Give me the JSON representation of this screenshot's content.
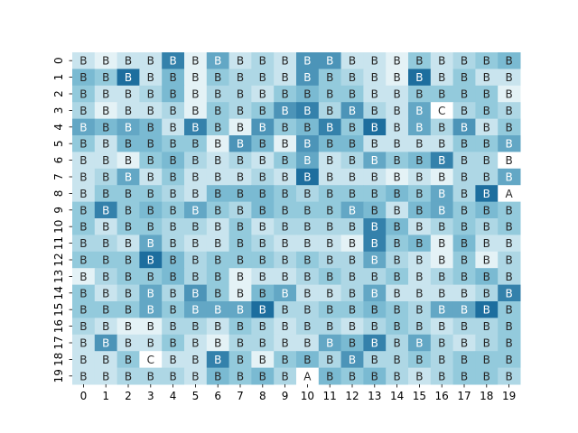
{
  "chart_data": {
    "type": "heatmap",
    "title": "",
    "xlabel": "",
    "ylabel": "",
    "x_ticks": [
      "0",
      "1",
      "2",
      "3",
      "4",
      "5",
      "6",
      "7",
      "8",
      "9",
      "10",
      "11",
      "12",
      "13",
      "14",
      "15",
      "16",
      "17",
      "18",
      "19"
    ],
    "y_ticks": [
      "0",
      "1",
      "2",
      "3",
      "4",
      "5",
      "6",
      "7",
      "8",
      "9",
      "10",
      "11",
      "12",
      "13",
      "14",
      "15",
      "16",
      "17",
      "18",
      "19"
    ],
    "colormap": {
      "low": "#ffffff",
      "mid": "#86c3d8",
      "high": "#1d6e9e"
    },
    "grid": false,
    "colorbar": false,
    "labels": [
      [
        "B",
        "B",
        "B",
        "B",
        "B",
        "B",
        "B",
        "B",
        "B",
        "B",
        "B",
        "B",
        "B",
        "B",
        "B",
        "B",
        "B",
        "B",
        "B",
        "B"
      ],
      [
        "B",
        "B",
        "B",
        "B",
        "B",
        "B",
        "B",
        "B",
        "B",
        "B",
        "B",
        "B",
        "B",
        "B",
        "B",
        "B",
        "B",
        "B",
        "B",
        "B"
      ],
      [
        "B",
        "B",
        "B",
        "B",
        "B",
        "B",
        "B",
        "B",
        "B",
        "B",
        "B",
        "B",
        "B",
        "B",
        "B",
        "B",
        "B",
        "B",
        "B",
        "B"
      ],
      [
        "B",
        "B",
        "B",
        "B",
        "B",
        "B",
        "B",
        "B",
        "B",
        "B",
        "B",
        "B",
        "B",
        "B",
        "B",
        "B",
        "C",
        "B",
        "B",
        "B"
      ],
      [
        "B",
        "B",
        "B",
        "B",
        "B",
        "B",
        "B",
        "B",
        "B",
        "B",
        "B",
        "B",
        "B",
        "B",
        "B",
        "B",
        "B",
        "B",
        "B",
        "B"
      ],
      [
        "B",
        "B",
        "B",
        "B",
        "B",
        "B",
        "B",
        "B",
        "B",
        "B",
        "B",
        "B",
        "B",
        "B",
        "B",
        "B",
        "B",
        "B",
        "B",
        "B"
      ],
      [
        "B",
        "B",
        "B",
        "B",
        "B",
        "B",
        "B",
        "B",
        "B",
        "B",
        "B",
        "B",
        "B",
        "B",
        "B",
        "B",
        "B",
        "B",
        "B",
        "B"
      ],
      [
        "B",
        "B",
        "B",
        "B",
        "B",
        "B",
        "B",
        "B",
        "B",
        "B",
        "B",
        "B",
        "B",
        "B",
        "B",
        "B",
        "B",
        "B",
        "B",
        "B"
      ],
      [
        "B",
        "B",
        "B",
        "B",
        "B",
        "B",
        "B",
        "B",
        "B",
        "B",
        "B",
        "B",
        "B",
        "B",
        "B",
        "B",
        "B",
        "B",
        "B",
        "A"
      ],
      [
        "B",
        "B",
        "B",
        "B",
        "B",
        "B",
        "B",
        "B",
        "B",
        "B",
        "B",
        "B",
        "B",
        "B",
        "B",
        "B",
        "B",
        "B",
        "B",
        "B"
      ],
      [
        "B",
        "B",
        "B",
        "B",
        "B",
        "B",
        "B",
        "B",
        "B",
        "B",
        "B",
        "B",
        "B",
        "B",
        "B",
        "B",
        "B",
        "B",
        "B",
        "B"
      ],
      [
        "B",
        "B",
        "B",
        "B",
        "B",
        "B",
        "B",
        "B",
        "B",
        "B",
        "B",
        "B",
        "B",
        "B",
        "B",
        "B",
        "B",
        "B",
        "B",
        "B"
      ],
      [
        "B",
        "B",
        "B",
        "B",
        "B",
        "B",
        "B",
        "B",
        "B",
        "B",
        "B",
        "B",
        "B",
        "B",
        "B",
        "B",
        "B",
        "B",
        "B",
        "B"
      ],
      [
        "B",
        "B",
        "B",
        "B",
        "B",
        "B",
        "B",
        "B",
        "B",
        "B",
        "B",
        "B",
        "B",
        "B",
        "B",
        "B",
        "B",
        "B",
        "B",
        "B"
      ],
      [
        "B",
        "B",
        "B",
        "B",
        "B",
        "B",
        "B",
        "B",
        "B",
        "B",
        "B",
        "B",
        "B",
        "B",
        "B",
        "B",
        "B",
        "B",
        "B",
        "B"
      ],
      [
        "B",
        "B",
        "B",
        "B",
        "B",
        "B",
        "B",
        "B",
        "B",
        "B",
        "B",
        "B",
        "B",
        "B",
        "B",
        "B",
        "B",
        "B",
        "B",
        "B"
      ],
      [
        "B",
        "B",
        "B",
        "B",
        "B",
        "B",
        "B",
        "B",
        "B",
        "B",
        "B",
        "B",
        "B",
        "B",
        "B",
        "B",
        "B",
        "B",
        "B",
        "B"
      ],
      [
        "B",
        "B",
        "B",
        "B",
        "B",
        "B",
        "B",
        "B",
        "B",
        "B",
        "B",
        "B",
        "B",
        "B",
        "B",
        "B",
        "B",
        "B",
        "B",
        "B"
      ],
      [
        "B",
        "B",
        "B",
        "C",
        "B",
        "B",
        "B",
        "B",
        "B",
        "B",
        "B",
        "B",
        "B",
        "B",
        "B",
        "B",
        "B",
        "B",
        "B",
        "B"
      ],
      [
        "B",
        "B",
        "B",
        "B",
        "B",
        "B",
        "B",
        "B",
        "B",
        "B",
        "A",
        "B",
        "B",
        "B",
        "B",
        "B",
        "B",
        "B",
        "B",
        "B"
      ]
    ],
    "values": [
      [
        2,
        1,
        2,
        2,
        8,
        1,
        6,
        2,
        3,
        2,
        7,
        7,
        2,
        2,
        1,
        4,
        2,
        3,
        4,
        5
      ],
      [
        5,
        4,
        9,
        2,
        5,
        1,
        4,
        3,
        3,
        2,
        7,
        4,
        3,
        2,
        1,
        9,
        2,
        4,
        2,
        2
      ],
      [
        4,
        2,
        2,
        3,
        5,
        1,
        3,
        3,
        2,
        4,
        5,
        4,
        4,
        2,
        2,
        4,
        4,
        4,
        4,
        1
      ],
      [
        3,
        1,
        2,
        2,
        3,
        1,
        4,
        3,
        4,
        7,
        8,
        3,
        7,
        3,
        2,
        6,
        0,
        3,
        4,
        3
      ],
      [
        6,
        5,
        6,
        5,
        2,
        8,
        4,
        1,
        7,
        4,
        5,
        8,
        4,
        9,
        2,
        6,
        3,
        7,
        2,
        4
      ],
      [
        4,
        2,
        5,
        5,
        4,
        4,
        1,
        7,
        5,
        1,
        7,
        5,
        5,
        2,
        2,
        2,
        2,
        4,
        4,
        6
      ],
      [
        2,
        2,
        1,
        4,
        5,
        3,
        2,
        3,
        2,
        4,
        6,
        2,
        3,
        6,
        4,
        5,
        8,
        3,
        3,
        0
      ],
      [
        2,
        3,
        6,
        2,
        4,
        2,
        2,
        2,
        3,
        2,
        9,
        2,
        2,
        2,
        1,
        2,
        1,
        3,
        3,
        6
      ],
      [
        2,
        4,
        4,
        4,
        3,
        2,
        5,
        5,
        5,
        4,
        3,
        4,
        4,
        4,
        5,
        4,
        6,
        3,
        9,
        0
      ],
      [
        4,
        8,
        4,
        5,
        4,
        6,
        4,
        3,
        5,
        4,
        4,
        4,
        6,
        5,
        2,
        5,
        6,
        4,
        5,
        4
      ],
      [
        4,
        2,
        4,
        4,
        3,
        3,
        2,
        4,
        2,
        3,
        3,
        3,
        3,
        8,
        5,
        2,
        3,
        4,
        3,
        4
      ],
      [
        3,
        3,
        2,
        6,
        3,
        2,
        2,
        4,
        3,
        2,
        2,
        2,
        1,
        8,
        4,
        5,
        1,
        5,
        2,
        2
      ],
      [
        4,
        4,
        4,
        9,
        5,
        3,
        4,
        4,
        4,
        3,
        4,
        3,
        3,
        6,
        3,
        2,
        1,
        4,
        1,
        3
      ],
      [
        1,
        3,
        4,
        4,
        5,
        3,
        4,
        1,
        2,
        2,
        3,
        4,
        3,
        3,
        4,
        2,
        3,
        4,
        5,
        3
      ],
      [
        4,
        2,
        3,
        6,
        3,
        7,
        4,
        1,
        5,
        6,
        2,
        2,
        3,
        6,
        2,
        2,
        2,
        2,
        3,
        8
      ],
      [
        4,
        4,
        4,
        6,
        4,
        6,
        6,
        6,
        9,
        3,
        3,
        4,
        4,
        5,
        4,
        3,
        6,
        6,
        9,
        4
      ],
      [
        3,
        2,
        1,
        1,
        3,
        3,
        2,
        4,
        3,
        2,
        3,
        3,
        2,
        3,
        4,
        3,
        2,
        3,
        3,
        4
      ],
      [
        2,
        7,
        2,
        2,
        4,
        2,
        1,
        3,
        3,
        2,
        2,
        6,
        5,
        8,
        3,
        6,
        3,
        2,
        3,
        4
      ],
      [
        2,
        2,
        4,
        0,
        2,
        2,
        8,
        4,
        1,
        4,
        5,
        3,
        7,
        3,
        3,
        4,
        3,
        4,
        4,
        4
      ],
      [
        2,
        2,
        3,
        3,
        3,
        2,
        5,
        4,
        5,
        3,
        0,
        5,
        4,
        5,
        3,
        2,
        3,
        4,
        4,
        3
      ]
    ]
  }
}
